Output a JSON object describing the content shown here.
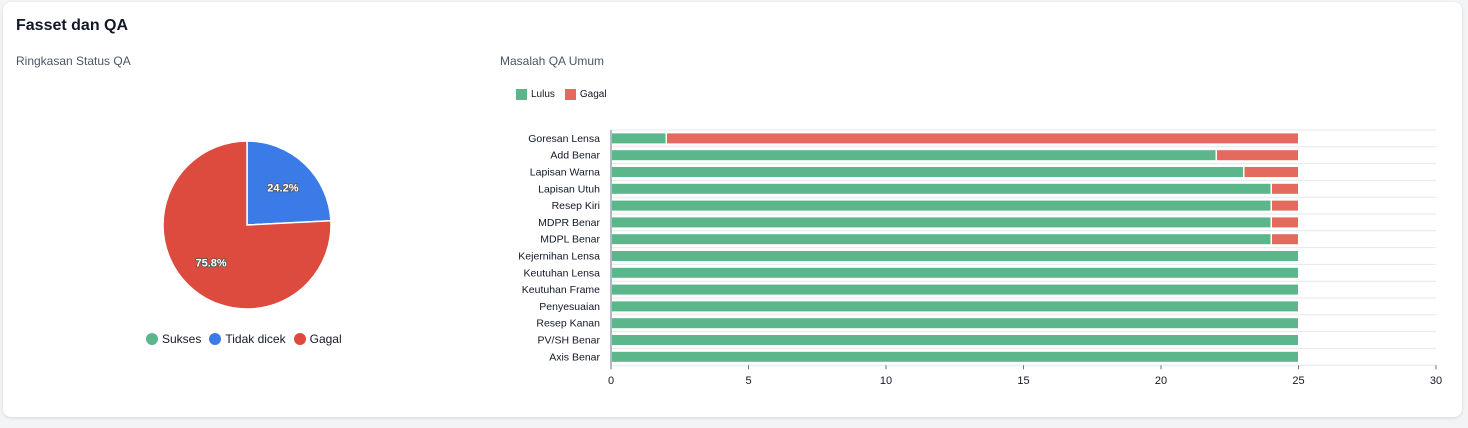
{
  "card": {
    "title": "Fasset dan QA"
  },
  "colors": {
    "green": "#5cb68b",
    "blue": "#3b7be8",
    "red": "#dd4b3e",
    "bar_red": "#e36a5d",
    "grid": "#e5e7eb"
  },
  "chart_data": [
    {
      "type": "pie",
      "title": "Ringkasan Status QA",
      "slices": [
        {
          "label": "Sukses",
          "value": 0,
          "color": "#5cb68b",
          "display": ""
        },
        {
          "label": "Tidak dicek",
          "value": 24.2,
          "color": "#3b7be8",
          "display": "24.2%"
        },
        {
          "label": "Gagal",
          "value": 75.8,
          "color": "#dd4b3e",
          "display": "75.8%"
        }
      ],
      "legend_position": "bottom"
    },
    {
      "type": "bar",
      "orientation": "horizontal",
      "stacked": true,
      "title": "Masalah QA Umum",
      "categories": [
        "Goresan Lensa",
        "Add Benar",
        "Lapisan Warna",
        "Lapisan Utuh",
        "Resep Kiri",
        "MDPR Benar",
        "MDPL Benar",
        "Kejernihan Lensa",
        "Keutuhan Lensa",
        "Keutuhan Frame",
        "Penyesuaian",
        "Resep Kanan",
        "PV/SH Benar",
        "Axis Benar"
      ],
      "series": [
        {
          "name": "Lulus",
          "color": "#5cb68b",
          "values": [
            2,
            22,
            23,
            24,
            24,
            24,
            24,
            25,
            25,
            25,
            25,
            25,
            25,
            25
          ]
        },
        {
          "name": "Gagal",
          "color": "#e36a5d",
          "values": [
            23,
            3,
            2,
            1,
            1,
            1,
            1,
            0,
            0,
            0,
            0,
            0,
            0,
            0
          ]
        }
      ],
      "xlim": [
        0,
        30
      ],
      "xticks": [
        "0",
        "5",
        "10",
        "15",
        "20",
        "25",
        "30"
      ],
      "grid": true,
      "legend_position": "top-left"
    }
  ]
}
